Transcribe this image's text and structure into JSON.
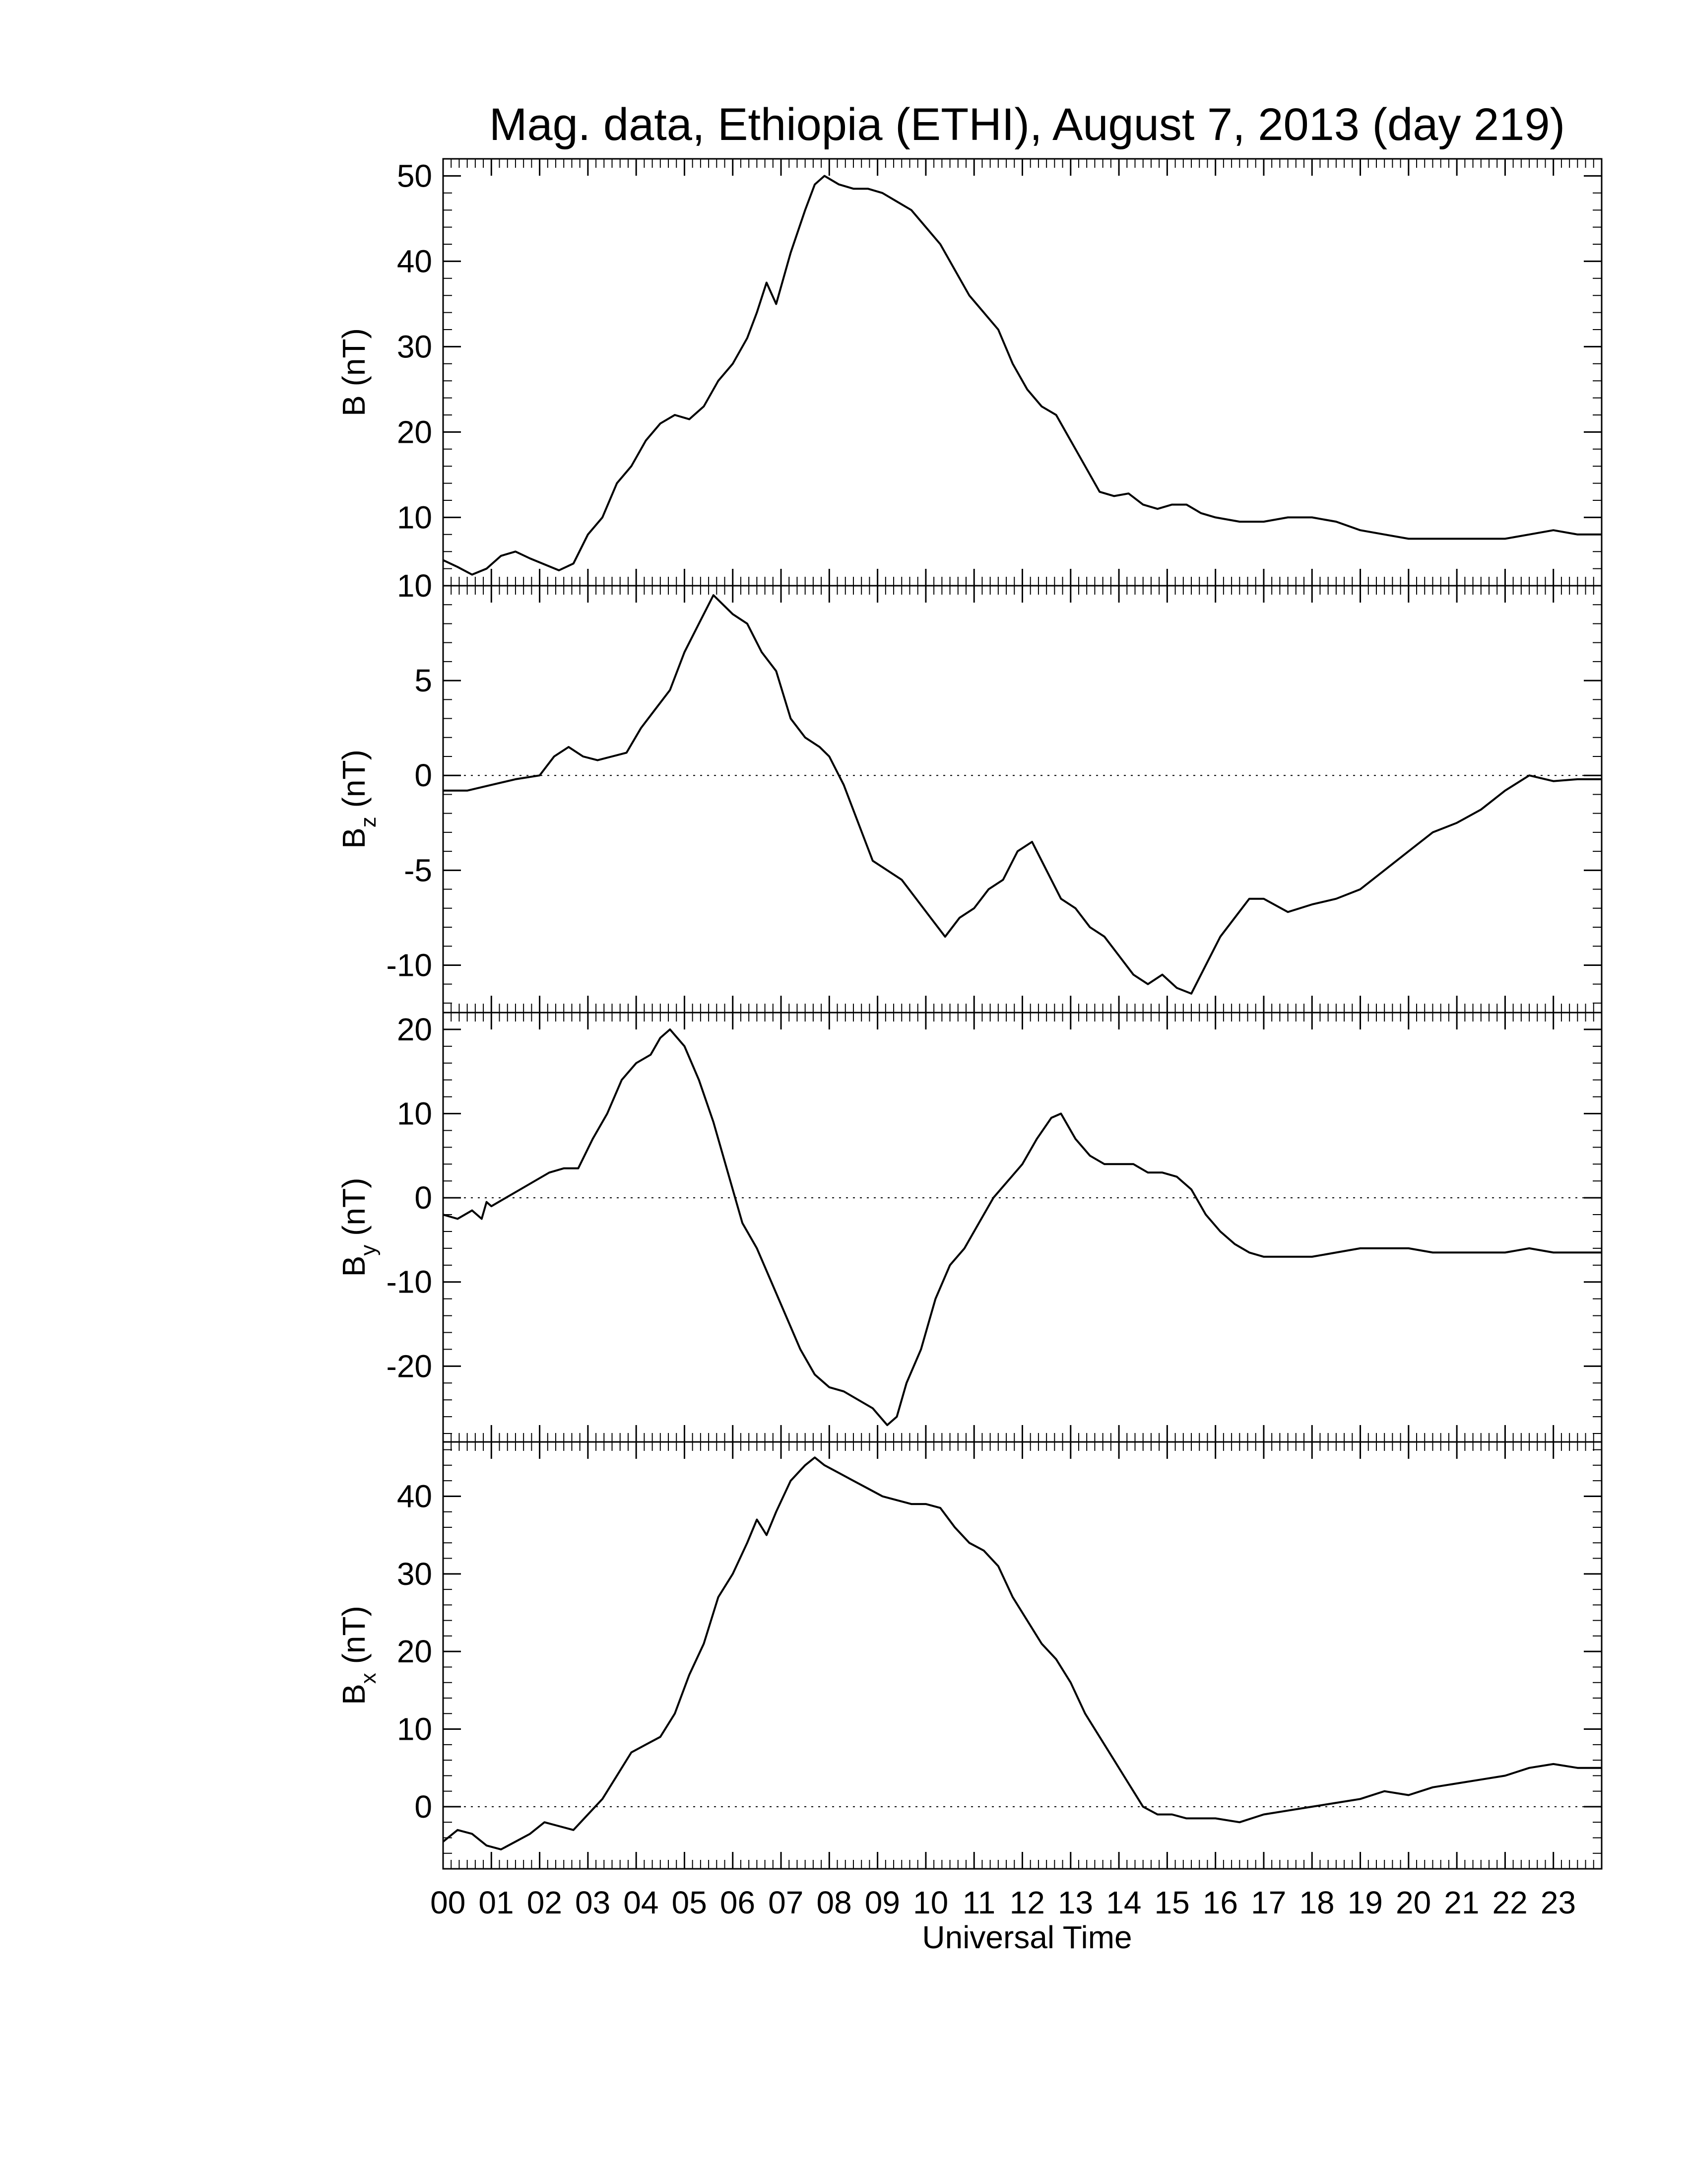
{
  "chart_data": {
    "type": "line",
    "title": "Mag. data, Ethiopia (ETHI), August 7, 2013 (day 219)",
    "xlabel": "Universal Time",
    "x_ticks": [
      "00",
      "01",
      "02",
      "03",
      "04",
      "05",
      "06",
      "07",
      "08",
      "09",
      "10",
      "11",
      "12",
      "13",
      "14",
      "15",
      "16",
      "17",
      "18",
      "19",
      "20",
      "21",
      "22",
      "23"
    ],
    "xlim": [
      0,
      24
    ],
    "panels": [
      {
        "id": "B",
        "ylabel": "B (nT)",
        "ylabel_main": "B",
        "ylabel_sub": "",
        "ylabel_unit": " (nT)",
        "ylim": [
          2,
          52
        ],
        "y_ticks": [
          10,
          20,
          30,
          40,
          50
        ],
        "zero_line": false,
        "series": [
          {
            "x": [
              0,
              0.3,
              0.6,
              0.9,
              1.2,
              1.5,
              1.8,
              2.1,
              2.4,
              2.7,
              3.0,
              3.3,
              3.6,
              3.9,
              4.2,
              4.5,
              4.8,
              5.1,
              5.4,
              5.7,
              6.0,
              6.3,
              6.5,
              6.7,
              6.9,
              7.2,
              7.5,
              7.7,
              7.9,
              8.2,
              8.5,
              8.8,
              9.1,
              9.4,
              9.7,
              10.0,
              10.3,
              10.6,
              10.9,
              11.2,
              11.5,
              11.8,
              12.1,
              12.4,
              12.7,
              13.0,
              13.3,
              13.6,
              13.9,
              14.2,
              14.5,
              14.8,
              15.1,
              15.4,
              15.7,
              16.0,
              16.5,
              17.0,
              17.5,
              18.0,
              18.5,
              19.0,
              19.5,
              20.0,
              20.5,
              21.0,
              21.5,
              22.0,
              22.5,
              23.0,
              23.5,
              24.0
            ],
            "y": [
              5,
              4.2,
              3.3,
              4.0,
              5.5,
              6.0,
              5.2,
              4.5,
              3.8,
              4.6,
              8,
              10,
              14,
              16,
              19,
              21,
              22,
              21.5,
              23,
              26,
              28,
              31,
              34,
              37.5,
              35,
              41,
              46,
              49,
              50,
              49,
              48.5,
              48.5,
              48,
              47,
              46,
              44,
              42,
              39,
              36,
              34,
              32,
              28,
              25,
              23,
              22,
              19,
              16,
              13,
              12.5,
              12.8,
              11.5,
              11,
              11.5,
              11.5,
              10.5,
              10,
              9.5,
              9.5,
              10,
              10,
              9.5,
              8.5,
              8.0,
              7.5,
              7.5,
              7.5,
              7.5,
              7.5,
              8.0,
              8.5,
              8.0,
              8.0
            ]
          }
        ]
      },
      {
        "id": "Bz",
        "ylabel": "Bz (nT)",
        "ylabel_main": "B",
        "ylabel_sub": "z",
        "ylabel_unit": " (nT)",
        "ylim": [
          -12.5,
          10
        ],
        "y_ticks": [
          -10,
          -5,
          0,
          5,
          10
        ],
        "zero_line": true,
        "series": [
          {
            "x": [
              0,
              0.5,
              1.0,
              1.5,
              2.0,
              2.3,
              2.6,
              2.9,
              3.2,
              3.5,
              3.8,
              4.1,
              4.4,
              4.7,
              5.0,
              5.3,
              5.6,
              5.8,
              6.0,
              6.3,
              6.6,
              6.9,
              7.2,
              7.5,
              7.8,
              8.0,
              8.3,
              8.6,
              8.9,
              9.2,
              9.5,
              9.8,
              10.1,
              10.4,
              10.7,
              11.0,
              11.3,
              11.6,
              11.9,
              12.2,
              12.5,
              12.8,
              13.1,
              13.4,
              13.7,
              14.0,
              14.3,
              14.6,
              14.9,
              15.2,
              15.5,
              15.8,
              16.1,
              16.4,
              16.7,
              17.0,
              17.5,
              18.0,
              18.5,
              19.0,
              19.5,
              20.0,
              20.5,
              21.0,
              21.5,
              22.0,
              22.5,
              23.0,
              23.5,
              24.0
            ],
            "y": [
              -0.8,
              -0.8,
              -0.5,
              -0.2,
              0,
              1.0,
              1.5,
              1.0,
              0.8,
              1.0,
              1.2,
              2.5,
              3.5,
              4.5,
              6.5,
              8.0,
              9.5,
              9.0,
              8.5,
              8.0,
              6.5,
              5.5,
              3.0,
              2.0,
              1.5,
              1.0,
              -0.5,
              -2.5,
              -4.5,
              -5.0,
              -5.5,
              -6.5,
              -7.5,
              -8.5,
              -7.5,
              -7.0,
              -6.0,
              -5.5,
              -4.0,
              -3.5,
              -5.0,
              -6.5,
              -7.0,
              -8.0,
              -8.5,
              -9.5,
              -10.5,
              -11.0,
              -10.5,
              -11.2,
              -11.5,
              -10.0,
              -8.5,
              -7.5,
              -6.5,
              -6.5,
              -7.2,
              -6.8,
              -6.5,
              -6.0,
              -5.0,
              -4.0,
              -3.0,
              -2.5,
              -1.8,
              -0.8,
              0,
              -0.3,
              -0.2,
              -0.2
            ]
          }
        ]
      },
      {
        "id": "By",
        "ylabel": "By (nT)",
        "ylabel_main": "B",
        "ylabel_sub": "y",
        "ylabel_unit": " (nT)",
        "ylim": [
          -29,
          22
        ],
        "y_ticks": [
          -20,
          -10,
          0,
          10,
          20
        ],
        "zero_line": true,
        "series": [
          {
            "x": [
              0,
              0.3,
              0.6,
              0.8,
              0.9,
              1.0,
              1.3,
              1.6,
              1.9,
              2.2,
              2.5,
              2.8,
              3.1,
              3.4,
              3.7,
              4.0,
              4.3,
              4.5,
              4.7,
              5.0,
              5.3,
              5.6,
              5.9,
              6.2,
              6.5,
              6.8,
              7.1,
              7.4,
              7.7,
              8.0,
              8.3,
              8.6,
              8.9,
              9.2,
              9.4,
              9.6,
              9.9,
              10.2,
              10.5,
              10.8,
              11.1,
              11.4,
              11.7,
              12.0,
              12.3,
              12.6,
              12.8,
              13.1,
              13.4,
              13.7,
              14.0,
              14.3,
              14.6,
              14.9,
              15.2,
              15.5,
              15.8,
              16.1,
              16.4,
              16.7,
              17.0,
              17.5,
              18.0,
              18.5,
              19.0,
              19.5,
              20.0,
              20.5,
              21.0,
              21.5,
              22.0,
              22.5,
              23.0,
              23.5,
              24.0
            ],
            "y": [
              -2,
              -2.5,
              -1.5,
              -2.5,
              -0.5,
              -1.0,
              0,
              1.0,
              2.0,
              3.0,
              3.5,
              3.5,
              7.0,
              10.0,
              14.0,
              16.0,
              17.0,
              19.0,
              20.0,
              18.0,
              14.0,
              9.0,
              3.0,
              -3.0,
              -6.0,
              -10.0,
              -14.0,
              -18.0,
              -21.0,
              -22.5,
              -23.0,
              -24.0,
              -25.0,
              -27.0,
              -26.0,
              -22.0,
              -18.0,
              -12.0,
              -8.0,
              -6.0,
              -3.0,
              0,
              2.0,
              4.0,
              7.0,
              9.5,
              10.0,
              7.0,
              5.0,
              4.0,
              4.0,
              4.0,
              3.0,
              3.0,
              2.5,
              1.0,
              -2.0,
              -4.0,
              -5.5,
              -6.5,
              -7.0,
              -7.0,
              -7.0,
              -6.5,
              -6.0,
              -6.0,
              -6.0,
              -6.5,
              -6.5,
              -6.5,
              -6.5,
              -6.0,
              -6.5,
              -6.5,
              -6.5
            ]
          }
        ]
      },
      {
        "id": "Bx",
        "ylabel": "Bx (nT)",
        "ylabel_main": "B",
        "ylabel_sub": "x",
        "ylabel_unit": " (nT)",
        "ylim": [
          -8,
          47
        ],
        "y_ticks": [
          0,
          10,
          20,
          30,
          40
        ],
        "zero_line": true,
        "series": [
          {
            "x": [
              0,
              0.3,
              0.6,
              0.9,
              1.2,
              1.5,
              1.8,
              2.1,
              2.4,
              2.7,
              3.0,
              3.3,
              3.6,
              3.9,
              4.2,
              4.5,
              4.8,
              5.1,
              5.4,
              5.7,
              6.0,
              6.3,
              6.5,
              6.7,
              6.9,
              7.2,
              7.5,
              7.7,
              7.9,
              8.2,
              8.5,
              8.8,
              9.1,
              9.4,
              9.7,
              10.0,
              10.3,
              10.6,
              10.9,
              11.2,
              11.5,
              11.8,
              12.1,
              12.4,
              12.7,
              13.0,
              13.3,
              13.6,
              13.9,
              14.2,
              14.5,
              14.8,
              15.1,
              15.4,
              15.7,
              16.0,
              16.5,
              17.0,
              17.5,
              18.0,
              18.5,
              19.0,
              19.5,
              20.0,
              20.5,
              21.0,
              21.5,
              22.0,
              22.5,
              23.0,
              23.5,
              24.0
            ],
            "y": [
              -4.5,
              -3.0,
              -3.5,
              -5.0,
              -5.5,
              -4.5,
              -3.5,
              -2.0,
              -2.5,
              -3.0,
              -1.0,
              1.0,
              4.0,
              7.0,
              8.0,
              9.0,
              12.0,
              17.0,
              21.0,
              27.0,
              30.0,
              34.0,
              37.0,
              35.0,
              38.0,
              42.0,
              44.0,
              45.0,
              44.0,
              43.0,
              42.0,
              41.0,
              40.0,
              39.5,
              39.0,
              39.0,
              38.5,
              36.0,
              34.0,
              33.0,
              31.0,
              27.0,
              24.0,
              21.0,
              19.0,
              16.0,
              12.0,
              9.0,
              6.0,
              3.0,
              0,
              -1.0,
              -1.0,
              -1.5,
              -1.5,
              -1.5,
              -2.0,
              -1.0,
              -0.5,
              0,
              0.5,
              1.0,
              2.0,
              1.5,
              2.5,
              3.0,
              3.5,
              4.0,
              5.0,
              5.5,
              5.0,
              5.0
            ]
          }
        ]
      }
    ]
  }
}
